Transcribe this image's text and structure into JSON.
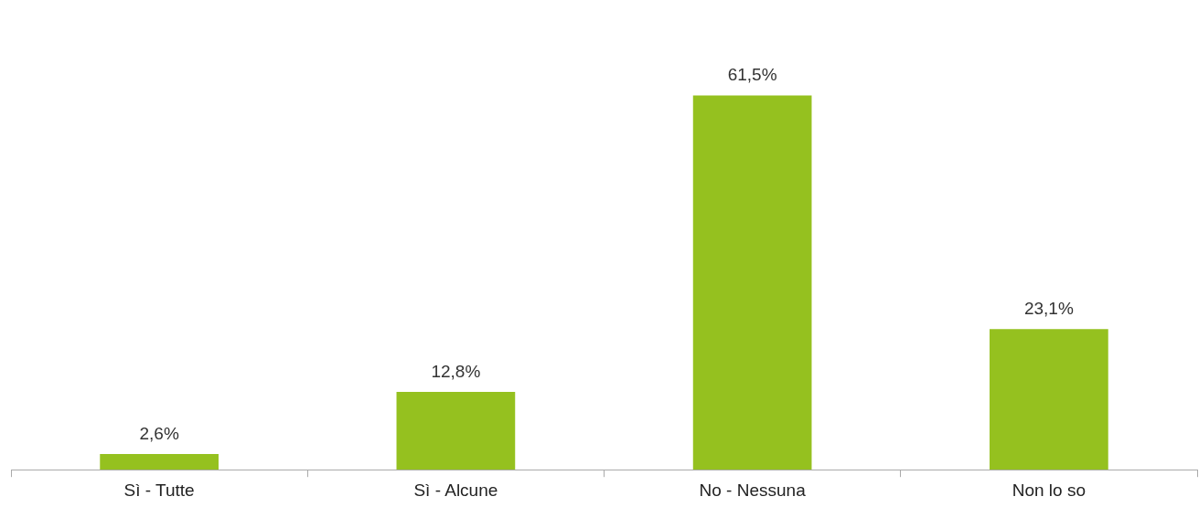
{
  "chart_data": {
    "type": "bar",
    "categories": [
      "Sì - Tutte",
      "Sì - Alcune",
      "No - Nessuna",
      "Non lo so"
    ],
    "values": [
      2.6,
      12.8,
      61.5,
      23.1
    ],
    "color": "#95c11f",
    "value_labels": [
      "2,6%",
      "12,8%",
      "61,5%",
      "23,1%"
    ]
  }
}
